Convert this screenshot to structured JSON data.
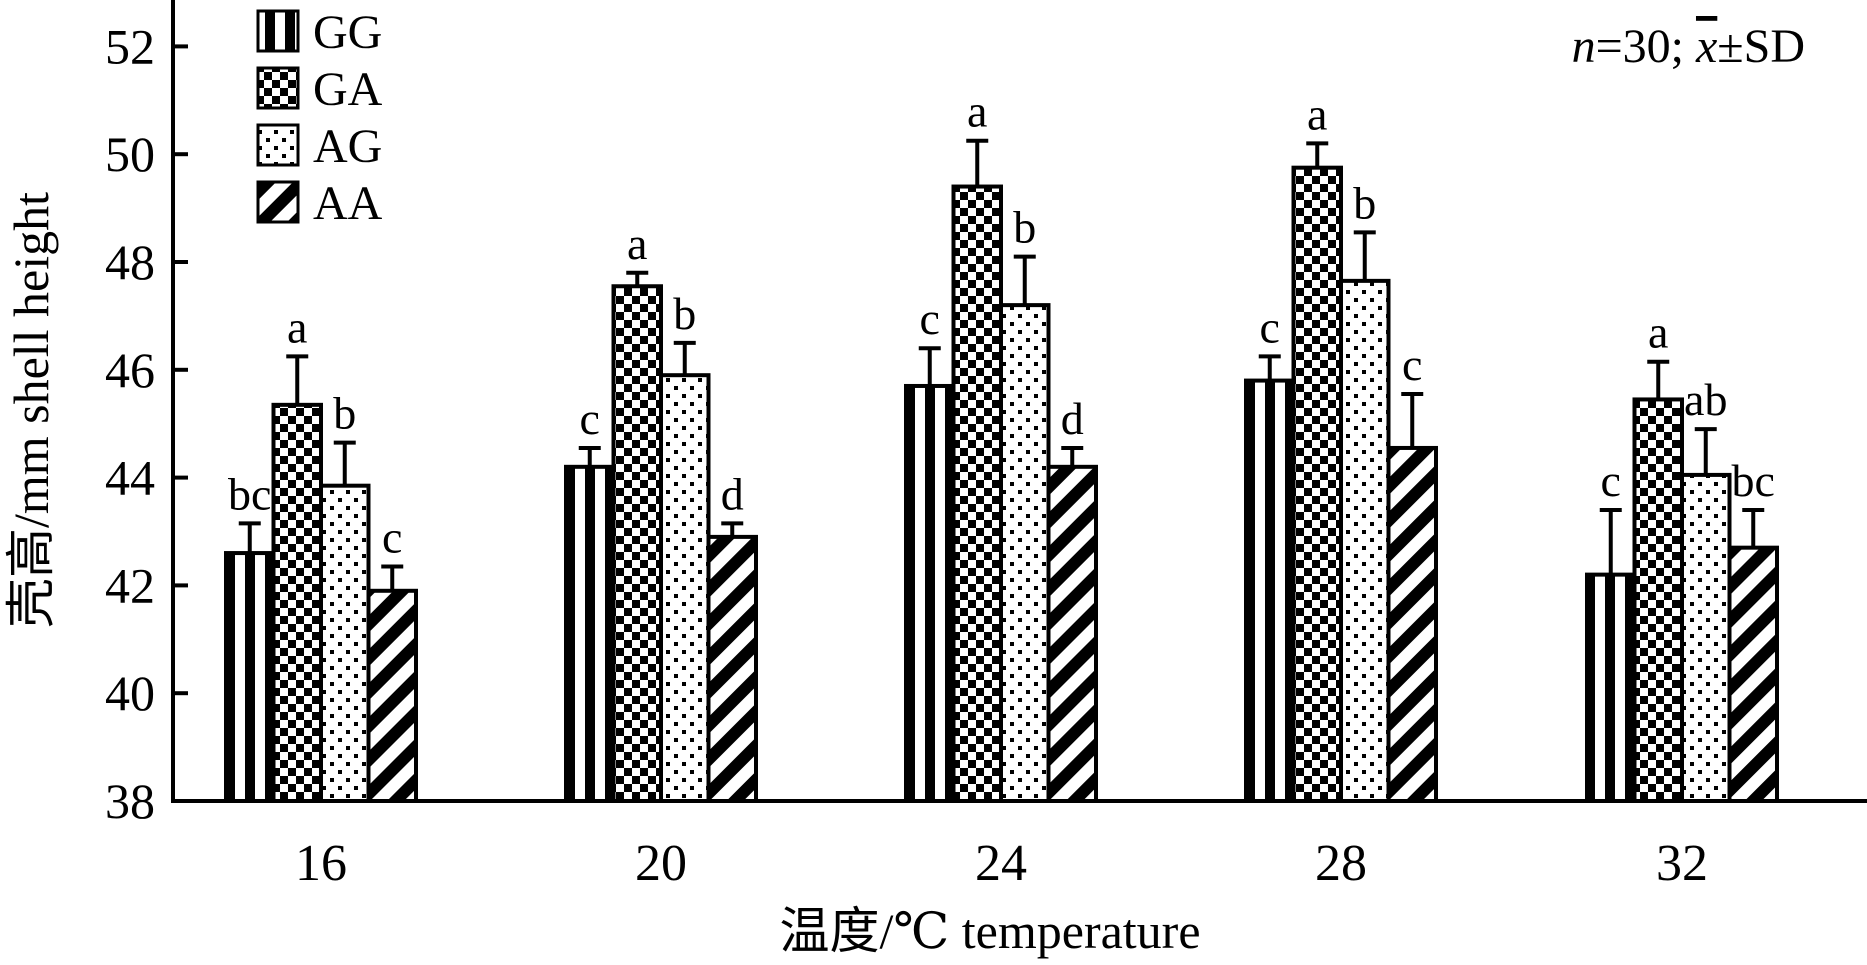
{
  "chart_data": {
    "type": "bar",
    "categories": [
      "16",
      "20",
      "24",
      "28",
      "32"
    ],
    "series": [
      {
        "name": "GG",
        "pattern": "vertical-stripes",
        "values": [
          42.6,
          44.2,
          45.7,
          45.8,
          42.2
        ],
        "sd": [
          0.55,
          0.35,
          0.7,
          0.45,
          1.2
        ],
        "letters": [
          "bc",
          "c",
          "c",
          "c",
          "c"
        ]
      },
      {
        "name": "GA",
        "pattern": "checkerboard",
        "values": [
          45.35,
          47.55,
          49.4,
          49.75,
          45.45
        ],
        "sd": [
          0.9,
          0.25,
          0.85,
          0.45,
          0.7
        ],
        "letters": [
          "a",
          "a",
          "a",
          "a",
          "a"
        ]
      },
      {
        "name": "AG",
        "pattern": "dots",
        "values": [
          43.85,
          45.9,
          47.2,
          47.65,
          44.05
        ],
        "sd": [
          0.8,
          0.6,
          0.9,
          0.9,
          0.85
        ],
        "letters": [
          "b",
          "b",
          "b",
          "b",
          "ab"
        ]
      },
      {
        "name": "AA",
        "pattern": "diagonal-stripes",
        "values": [
          41.9,
          42.9,
          44.2,
          44.55,
          42.7
        ],
        "sd": [
          0.45,
          0.25,
          0.35,
          1.0,
          0.7
        ],
        "letters": [
          "c",
          "d",
          "d",
          "c",
          "bc"
        ]
      }
    ],
    "xlabel": "温度/℃ temperature",
    "ylabel": "壳高/mm shell height",
    "ylim": [
      38,
      53
    ],
    "yticks": [
      "38",
      "40",
      "42",
      "44",
      "46",
      "48",
      "50",
      "52"
    ],
    "annotation": {
      "n_label": "n",
      "n_text": "=30; ",
      "mean_symbol": "x",
      "sd_text": "±SD"
    },
    "legend_position": "top-left",
    "grid": false,
    "colors": {
      "bar_fill": "#000000",
      "background": "#ffffff"
    }
  }
}
